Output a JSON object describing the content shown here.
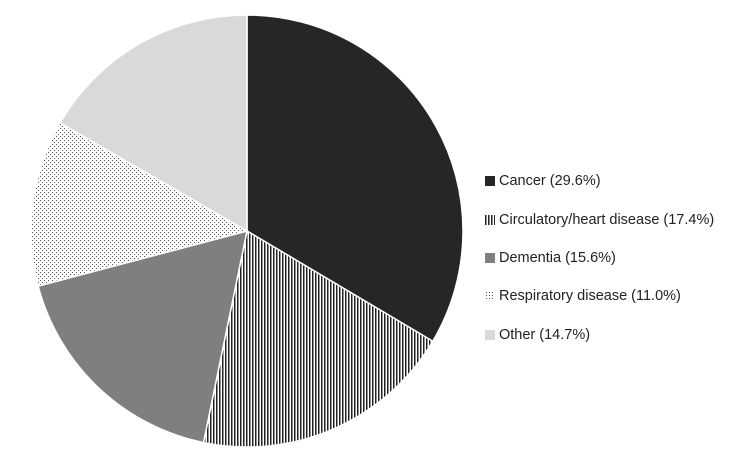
{
  "chart_data": {
    "type": "pie",
    "title": "",
    "start": "12 o'clock",
    "direction": "clockwise",
    "legend_position": "right",
    "categories": [
      "Cancer",
      "Circulatory/heart disease",
      "Dementia",
      "Respiratory disease",
      "Other"
    ],
    "values": [
      29.6,
      17.4,
      15.6,
      11.0,
      14.7
    ],
    "legend_labels": [
      "Cancer (29.6%)",
      "Circulatory/heart disease (17.4%)",
      "Dementia (15.6%)",
      "Respiratory disease (11.0%)",
      "Other (14.7%)"
    ],
    "fills": [
      {
        "style": "solid",
        "color": "#262626"
      },
      {
        "style": "vertical-lines",
        "color": "#222222",
        "background": "#ffffff"
      },
      {
        "style": "solid",
        "color": "#7f7f7f"
      },
      {
        "style": "dots",
        "color": "#555555",
        "background": "#ffffff"
      },
      {
        "style": "solid",
        "color": "#d9d9d9"
      }
    ]
  }
}
